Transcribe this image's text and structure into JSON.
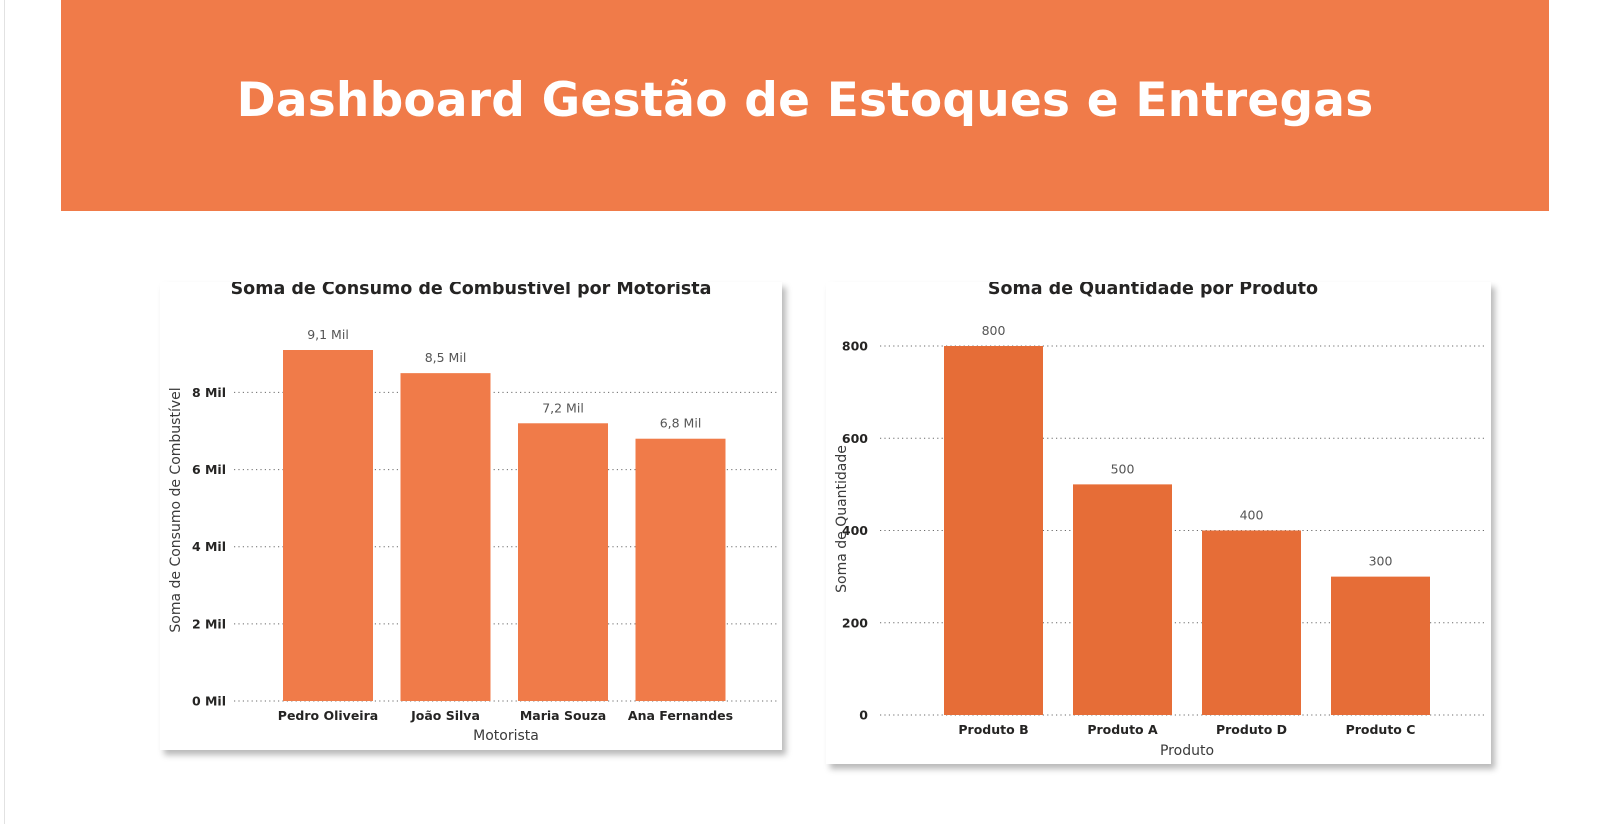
{
  "header": {
    "title": "Dashboard Gestão de Estoques e Entregas"
  },
  "colors": {
    "header_bg": "#f07b49",
    "bar_left": "#f07b49",
    "bar_right": "#e66d37"
  },
  "chart_data": [
    {
      "type": "bar",
      "title": "Soma de Consumo de Combustível por Motorista",
      "xlabel": "Motorista",
      "ylabel": "Soma de Consumo de Combustível",
      "categories": [
        "Pedro Oliveira",
        "João Silva",
        "Maria Souza",
        "Ana Fernandes"
      ],
      "values": [
        9100,
        8500,
        7200,
        6800
      ],
      "data_labels": [
        "9,1 Mil",
        "8,5 Mil",
        "7,2 Mil",
        "6,8 Mil"
      ],
      "yticks": [
        0,
        2000,
        4000,
        6000,
        8000
      ],
      "ytick_labels": [
        "0 Mil",
        "2 Mil",
        "4 Mil",
        "6 Mil",
        "8 Mil"
      ],
      "ylim": [
        0,
        9100
      ],
      "grid": true
    },
    {
      "type": "bar",
      "title": "Soma de Quantidade por Produto",
      "xlabel": "Produto",
      "ylabel": "Soma de Quantidade",
      "categories": [
        "Produto B",
        "Produto A",
        "Produto D",
        "Produto C"
      ],
      "values": [
        800,
        500,
        400,
        300
      ],
      "data_labels": [
        "800",
        "500",
        "400",
        "300"
      ],
      "yticks": [
        0,
        200,
        400,
        600,
        800
      ],
      "ytick_labels": [
        "0",
        "200",
        "400",
        "600",
        "800"
      ],
      "ylim": [
        0,
        800
      ],
      "grid": true
    }
  ]
}
